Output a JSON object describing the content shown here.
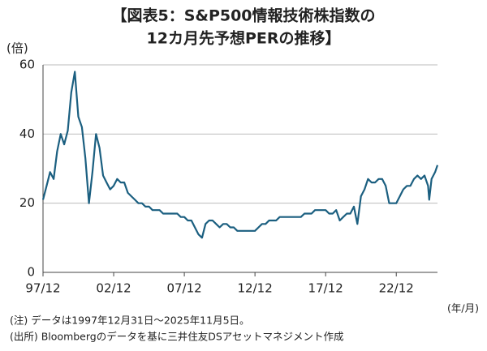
{
  "chart_data": {
    "type": "line",
    "title": [
      "【図表5：S&P500情報技術株指数の",
      "12カ月先予想PERの推移】"
    ],
    "y_unit": "(倍)",
    "x_unit": "(年/月)",
    "notes": [
      "(注) データは1997年12月31日～2025年11月5日。",
      "(出所) Bloombergのデータを基に三井住友DSアセットマネジメント作成"
    ],
    "x": [
      "97/12",
      "98/03",
      "98/06",
      "98/09",
      "98/12",
      "99/03",
      "99/06",
      "99/09",
      "99/12",
      "00/03",
      "00/06",
      "00/09",
      "00/12",
      "01/03",
      "01/06",
      "01/09",
      "01/12",
      "02/03",
      "02/06",
      "02/09",
      "02/12",
      "03/03",
      "03/06",
      "03/09",
      "03/12",
      "04/03",
      "04/06",
      "04/09",
      "04/12",
      "05/03",
      "05/06",
      "05/09",
      "05/12",
      "06/03",
      "06/06",
      "06/09",
      "06/12",
      "07/03",
      "07/06",
      "07/09",
      "07/12",
      "08/03",
      "08/06",
      "08/09",
      "08/12",
      "09/03",
      "09/06",
      "09/09",
      "09/12",
      "10/03",
      "10/06",
      "10/09",
      "10/12",
      "11/03",
      "11/06",
      "11/09",
      "11/12",
      "12/03",
      "12/06",
      "12/09",
      "12/12",
      "13/03",
      "13/06",
      "13/09",
      "13/12",
      "14/03",
      "14/06",
      "14/09",
      "14/12",
      "15/03",
      "15/06",
      "15/09",
      "15/12",
      "16/03",
      "16/06",
      "16/09",
      "16/12",
      "17/03",
      "17/06",
      "17/09",
      "17/12",
      "18/03",
      "18/06",
      "18/09",
      "18/12",
      "19/03",
      "19/06",
      "19/09",
      "19/12",
      "20/03",
      "20/06",
      "20/09",
      "20/12",
      "21/03",
      "21/06",
      "21/09",
      "21/12",
      "22/03",
      "22/06",
      "22/09",
      "22/12",
      "23/03",
      "23/06",
      "23/09",
      "23/12",
      "24/03",
      "24/06",
      "24/09",
      "24/12",
      "25/03",
      "25/04",
      "25/06",
      "25/09",
      "25/11"
    ],
    "series": [
      {
        "name": "PER",
        "color": "#1b5f80",
        "values": [
          21,
          25,
          29,
          27,
          35,
          40,
          37,
          41,
          52,
          58,
          45,
          42,
          33,
          20,
          29,
          40,
          36,
          28,
          26,
          24,
          25,
          27,
          26,
          26,
          23,
          22,
          21,
          20,
          20,
          19,
          19,
          18,
          18,
          18,
          17,
          17,
          17,
          17,
          17,
          16,
          16,
          15,
          15,
          13,
          11,
          10,
          14,
          15,
          15,
          14,
          13,
          14,
          14,
          13,
          13,
          12,
          12,
          12,
          12,
          12,
          12,
          13,
          14,
          14,
          15,
          15,
          15,
          16,
          16,
          16,
          16,
          16,
          16,
          16,
          17,
          17,
          17,
          18,
          18,
          18,
          18,
          17,
          17,
          18,
          15,
          16,
          17,
          17,
          19,
          14,
          22,
          24,
          27,
          26,
          26,
          27,
          27,
          25,
          20,
          20,
          20,
          22,
          24,
          25,
          25,
          27,
          28,
          27,
          28,
          25,
          21,
          27,
          29,
          31
        ]
      }
    ],
    "xlim": [
      "97/12",
      "25/11"
    ],
    "xticks": [
      "97/12",
      "02/12",
      "07/12",
      "12/12",
      "17/12",
      "22/12"
    ],
    "ylim": [
      0,
      60
    ],
    "yticks": [
      0,
      20,
      40,
      60
    ],
    "grid": true
  }
}
